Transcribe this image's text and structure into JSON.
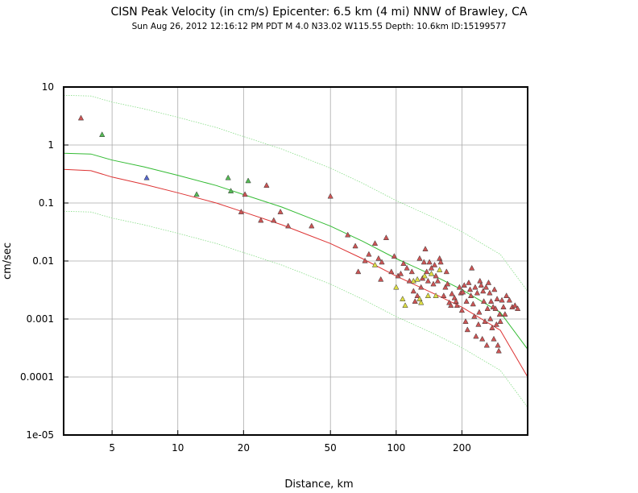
{
  "chart_data": {
    "type": "scatter",
    "title": "CISN Peak Velocity (in cm/s) Epicenter: 6.5 km (4 mi) NNW of Brawley, CA",
    "subtitle": "Sun Aug 26, 2012 12:16:12 PM PDT   M 4.0   N33.02 W115.55   Depth: 10.6km   ID:15199577",
    "xlabel": "Distance, km",
    "ylabel": "cm/sec",
    "x_scale": "log",
    "y_scale": "log",
    "xlim": [
      3,
      400
    ],
    "ylim": [
      1e-05,
      10
    ],
    "x_ticks": [
      {
        "value": 5,
        "label": "5"
      },
      {
        "value": 10,
        "label": "10"
      },
      {
        "value": 20,
        "label": "20"
      },
      {
        "value": 50,
        "label": "50"
      },
      {
        "value": 100,
        "label": "100"
      },
      {
        "value": 200,
        "label": "200"
      }
    ],
    "y_ticks": [
      {
        "value": 10,
        "label": "10"
      },
      {
        "value": 1,
        "label": "1"
      },
      {
        "value": 0.1,
        "label": "0.1"
      },
      {
        "value": 0.01,
        "label": "0.01"
      },
      {
        "value": 0.001,
        "label": "0.001"
      },
      {
        "value": 0.0001,
        "label": "0.0001"
      },
      {
        "value": 1e-05,
        "label": "1e-05"
      }
    ],
    "grid": true,
    "curves": [
      {
        "color": "#33bb33",
        "style": "solid",
        "points": [
          [
            3,
            0.72
          ],
          [
            4,
            0.7
          ],
          [
            5,
            0.55
          ],
          [
            7,
            0.42
          ],
          [
            10,
            0.3
          ],
          [
            15,
            0.2
          ],
          [
            20,
            0.14
          ],
          [
            30,
            0.085
          ],
          [
            50,
            0.04
          ],
          [
            70,
            0.022
          ],
          [
            100,
            0.011
          ],
          [
            150,
            0.0055
          ],
          [
            200,
            0.0032
          ],
          [
            300,
            0.0013
          ],
          [
            400,
            0.0003
          ]
        ]
      },
      {
        "color": "#dd3333",
        "style": "solid",
        "points": [
          [
            3,
            0.38
          ],
          [
            4,
            0.36
          ],
          [
            5,
            0.28
          ],
          [
            7,
            0.21
          ],
          [
            10,
            0.15
          ],
          [
            15,
            0.1
          ],
          [
            20,
            0.07
          ],
          [
            30,
            0.042
          ],
          [
            50,
            0.02
          ],
          [
            70,
            0.011
          ],
          [
            100,
            0.0055
          ],
          [
            150,
            0.0027
          ],
          [
            200,
            0.0016
          ],
          [
            300,
            0.00064
          ],
          [
            400,
            0.0001
          ]
        ]
      },
      {
        "color": "#88dd88",
        "style": "dotted",
        "points": [
          [
            3,
            7.2
          ],
          [
            4,
            7
          ],
          [
            5,
            5.5
          ],
          [
            7,
            4.2
          ],
          [
            10,
            3
          ],
          [
            15,
            2
          ],
          [
            20,
            1.4
          ],
          [
            30,
            0.85
          ],
          [
            50,
            0.4
          ],
          [
            70,
            0.22
          ],
          [
            100,
            0.11
          ],
          [
            150,
            0.055
          ],
          [
            200,
            0.032
          ],
          [
            300,
            0.013
          ],
          [
            400,
            0.003
          ]
        ]
      },
      {
        "color": "#88dd88",
        "style": "dotted",
        "points": [
          [
            3,
            0.072
          ],
          [
            4,
            0.07
          ],
          [
            5,
            0.055
          ],
          [
            7,
            0.042
          ],
          [
            10,
            0.03
          ],
          [
            15,
            0.02
          ],
          [
            20,
            0.014
          ],
          [
            30,
            0.0085
          ],
          [
            50,
            0.004
          ],
          [
            70,
            0.0022
          ],
          [
            100,
            0.0011
          ],
          [
            150,
            0.00055
          ],
          [
            200,
            0.00032
          ],
          [
            300,
            0.00013
          ],
          [
            400,
            3e-05
          ]
        ]
      }
    ],
    "stations": [
      {
        "color": "#cc5555",
        "points": [
          [
            3.6,
            2.9
          ],
          [
            19.5,
            0.07
          ],
          [
            20.3,
            0.14
          ],
          [
            24,
            0.05
          ],
          [
            25.5,
            0.2
          ],
          [
            27.5,
            0.05
          ],
          [
            29.5,
            0.07
          ],
          [
            32,
            0.04
          ],
          [
            41,
            0.04
          ],
          [
            50,
            0.13
          ],
          [
            60,
            0.028
          ],
          [
            65,
            0.018
          ],
          [
            67,
            0.0065
          ],
          [
            72,
            0.01
          ],
          [
            75,
            0.013
          ],
          [
            80,
            0.02
          ],
          [
            83,
            0.011
          ],
          [
            86,
            0.0095
          ],
          [
            85,
            0.0048
          ],
          [
            90,
            0.025
          ],
          [
            95,
            0.0065
          ],
          [
            98,
            0.012
          ],
          [
            102,
            0.0055
          ],
          [
            105,
            0.006
          ],
          [
            108,
            0.009
          ],
          [
            112,
            0.0075
          ],
          [
            115,
            0.0045
          ],
          [
            118,
            0.0065
          ],
          [
            120,
            0.003
          ],
          [
            122,
            0.002
          ],
          [
            125,
            0.0025
          ],
          [
            128,
            0.011
          ],
          [
            130,
            0.0035
          ],
          [
            132,
            0.005
          ],
          [
            134,
            0.0095
          ],
          [
            136,
            0.016
          ],
          [
            138,
            0.0065
          ],
          [
            140,
            0.0045
          ],
          [
            142,
            0.0095
          ],
          [
            145,
            0.0075
          ],
          [
            148,
            0.004
          ],
          [
            150,
            0.0085
          ],
          [
            152,
            0.0055
          ],
          [
            155,
            0.0045
          ],
          [
            158,
            0.011
          ],
          [
            160,
            0.0095
          ],
          [
            165,
            0.0025
          ],
          [
            168,
            0.0035
          ],
          [
            170,
            0.0065
          ],
          [
            172,
            0.004
          ],
          [
            175,
            0.0019
          ],
          [
            178,
            0.0017
          ],
          [
            180,
            0.0027
          ],
          [
            185,
            0.0023
          ],
          [
            188,
            0.002
          ],
          [
            190,
            0.0017
          ],
          [
            195,
            0.0035
          ],
          [
            198,
            0.0028
          ],
          [
            200,
            0.0014
          ],
          [
            202,
            0.0029
          ],
          [
            205,
            0.0038
          ],
          [
            208,
            0.0009
          ],
          [
            210,
            0.002
          ],
          [
            212,
            0.00065
          ],
          [
            215,
            0.0042
          ],
          [
            218,
            0.0032
          ],
          [
            220,
            0.0025
          ],
          [
            222,
            0.0075
          ],
          [
            225,
            0.0018
          ],
          [
            228,
            0.0011
          ],
          [
            230,
            0.0035
          ],
          [
            232,
            0.0005
          ],
          [
            235,
            0.0028
          ],
          [
            238,
            0.0008
          ],
          [
            240,
            0.0013
          ],
          [
            242,
            0.0045
          ],
          [
            245,
            0.0038
          ],
          [
            248,
            0.00045
          ],
          [
            250,
            0.003
          ],
          [
            252,
            0.002
          ],
          [
            255,
            0.0009
          ],
          [
            258,
            0.0035
          ],
          [
            260,
            0.00035
          ],
          [
            262,
            0.0015
          ],
          [
            265,
            0.0042
          ],
          [
            268,
            0.0028
          ],
          [
            270,
            0.001
          ],
          [
            272,
            0.002
          ],
          [
            275,
            0.0007
          ],
          [
            278,
            0.0016
          ],
          [
            280,
            0.00045
          ],
          [
            282,
            0.0032
          ],
          [
            285,
            0.0015
          ],
          [
            288,
            0.0008
          ],
          [
            290,
            0.0022
          ],
          [
            292,
            0.00035
          ],
          [
            295,
            0.00028
          ],
          [
            298,
            0.0012
          ],
          [
            300,
            0.0009
          ],
          [
            305,
            0.0021
          ],
          [
            310,
            0.0016
          ],
          [
            315,
            0.0012
          ],
          [
            320,
            0.0025
          ],
          [
            330,
            0.0021
          ],
          [
            340,
            0.0016
          ],
          [
            350,
            0.0017
          ],
          [
            360,
            0.0015
          ]
        ]
      },
      {
        "color": "#55bb55",
        "points": [
          [
            4.5,
            1.5
          ],
          [
            12.2,
            0.14
          ],
          [
            17,
            0.27
          ],
          [
            17.5,
            0.16
          ],
          [
            21,
            0.24
          ]
        ]
      },
      {
        "color": "#5566cc",
        "points": [
          [
            7.2,
            0.27
          ]
        ]
      },
      {
        "color": "#dddd44",
        "points": [
          [
            80,
            0.0085
          ],
          [
            100,
            0.0035
          ],
          [
            107,
            0.0022
          ],
          [
            110,
            0.0017
          ],
          [
            120,
            0.0045
          ],
          [
            125,
            0.0048
          ],
          [
            128,
            0.0022
          ],
          [
            130,
            0.0019
          ],
          [
            135,
            0.0055
          ],
          [
            140,
            0.0025
          ],
          [
            145,
            0.006
          ],
          [
            152,
            0.0025
          ],
          [
            158,
            0.007
          ]
        ]
      }
    ]
  }
}
